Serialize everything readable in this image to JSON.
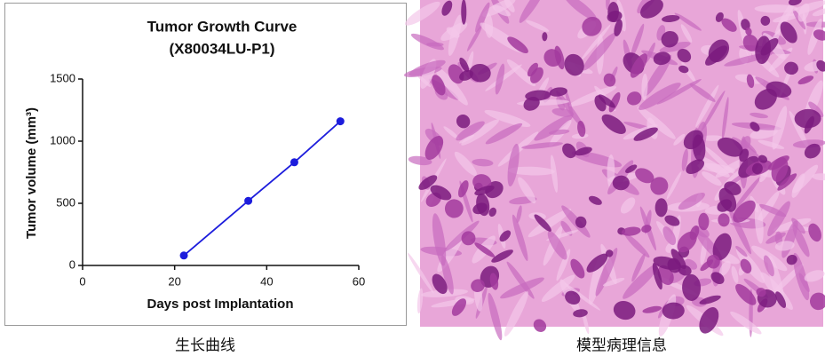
{
  "chart_data": {
    "type": "line",
    "title": "Tumor Growth Curve",
    "subtitle": "(X80034LU-P1)",
    "x_label": "Days post Implantation",
    "y_label": "Tumor volume (mm³)",
    "x": [
      22,
      36,
      46,
      56
    ],
    "series": [
      {
        "name": null,
        "color": "#1c1cdc",
        "values": [
          80,
          520,
          830,
          1160
        ]
      }
    ],
    "xlim": [
      0,
      60
    ],
    "xticks": [
      0,
      20,
      40,
      60
    ],
    "ylim": [
      0,
      1500
    ],
    "yticks": [
      0,
      500,
      1000,
      1500
    ],
    "grid": false
  },
  "captions": [
    "生长曲线",
    "模型病理信息"
  ]
}
